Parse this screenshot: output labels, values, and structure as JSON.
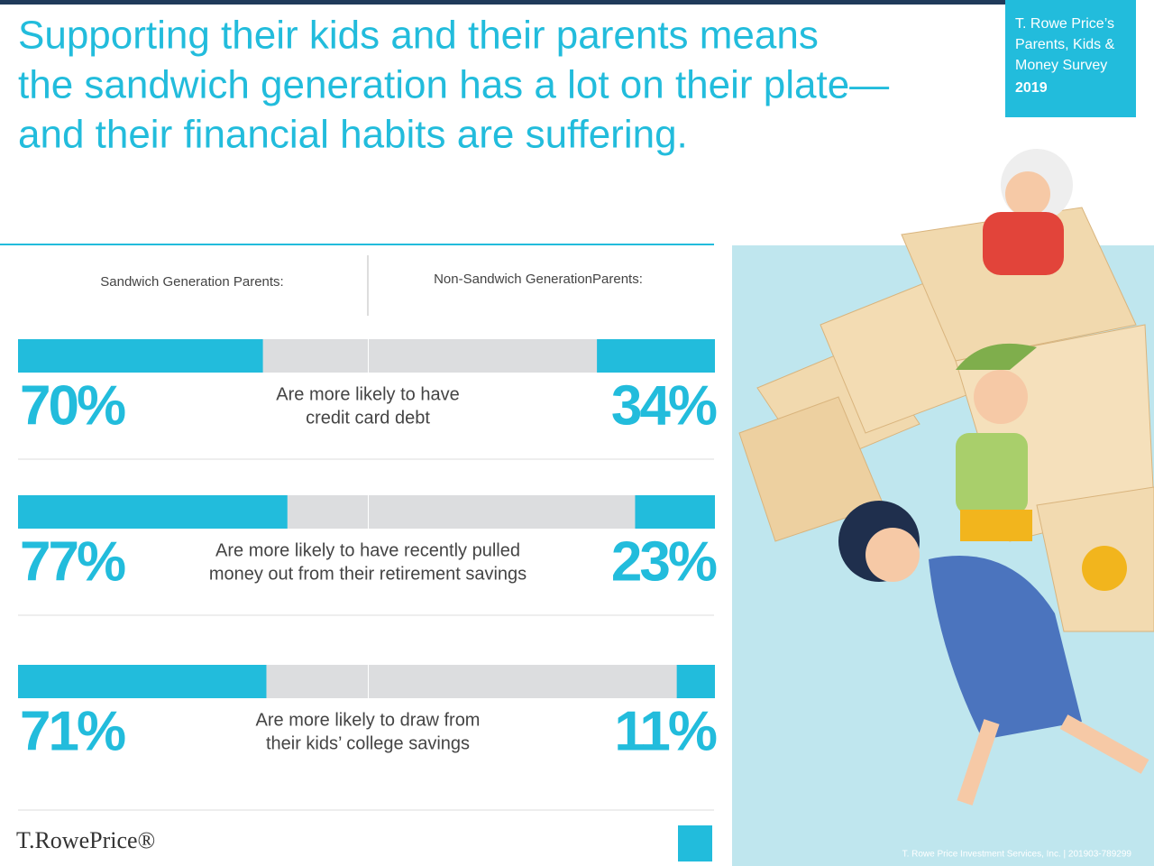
{
  "header": {
    "title_lines": [
      "Supporting their kids and their parents means",
      "the sandwich generation has a lot on their plate—",
      "and their financial habits are suffering."
    ]
  },
  "badge": {
    "lines": [
      "T. Rowe Price’s",
      "Parents, Kids &",
      "Money Survey"
    ],
    "year": "2019"
  },
  "columns": {
    "left": "Sandwich Generation Parents:",
    "right": "Non-Sandwich GenerationParents:"
  },
  "rows": [
    {
      "label_lines": [
        "Are more likely to have",
        "credit card debt"
      ],
      "left": 70,
      "left_label": "70%",
      "right": 34,
      "right_label": "34%"
    },
    {
      "label_lines": [
        "Are more likely to have recently pulled",
        "money out from their retirement savings"
      ],
      "left": 77,
      "left_label": "77%",
      "right": 23,
      "right_label": "23%"
    },
    {
      "label_lines": [
        "Are more likely to draw from",
        "their kids’ college savings"
      ],
      "left": 71,
      "left_label": "71%",
      "right": 11,
      "right_label": "11%"
    }
  ],
  "colors": {
    "accent": "#22bcdc",
    "track": "#dcdddf"
  },
  "footer": {
    "brand": "T.RowePrice®",
    "credit": "T. Rowe Price Investment Services, Inc. | 201903-789299"
  }
}
